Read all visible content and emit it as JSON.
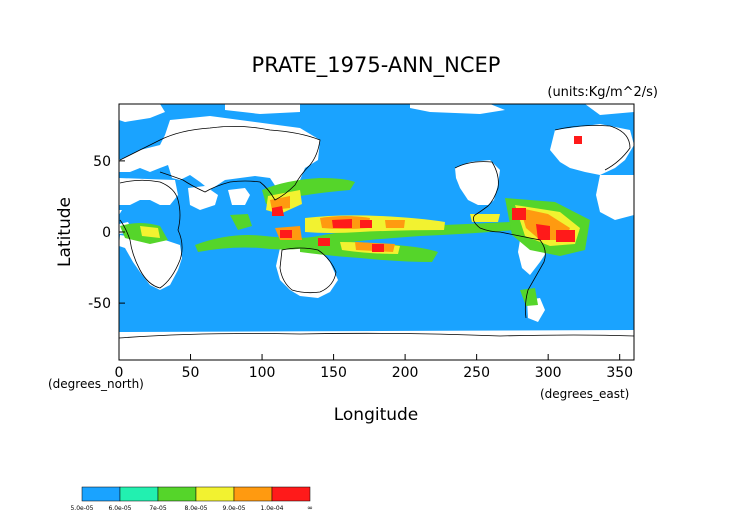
{
  "title": "PRATE_1975-ANN_NCEP",
  "units": "(units:Kg/m^2/s)",
  "x_axis": {
    "label": "Longitude",
    "unit_note": "(degrees_east)",
    "ticks": [
      {
        "value": 0,
        "label": "0"
      },
      {
        "value": 50,
        "label": "50"
      },
      {
        "value": 100,
        "label": "100"
      },
      {
        "value": 150,
        "label": "150"
      },
      {
        "value": 200,
        "label": "200"
      },
      {
        "value": 250,
        "label": "250"
      },
      {
        "value": 300,
        "label": "300"
      },
      {
        "value": 350,
        "label": "350"
      }
    ],
    "range": [
      0,
      360
    ]
  },
  "y_axis": {
    "label": "Latitude",
    "unit_note": "(degrees_north)",
    "ticks": [
      {
        "value": 50,
        "label": "50"
      },
      {
        "value": 0,
        "label": "0"
      },
      {
        "value": -50,
        "label": "-50"
      }
    ],
    "range": [
      -90,
      90
    ]
  },
  "colorbar": {
    "bins": [
      {
        "label": "5.0e-05",
        "color": "#1aa3ff"
      },
      {
        "label": "6.0e-05",
        "color": "#22f0b0"
      },
      {
        "label": "7e-05",
        "color": "#55d52a"
      },
      {
        "label": "8.0e-05",
        "color": "#f2f230"
      },
      {
        "label": "9.0e-05",
        "color": "#ff9a10"
      },
      {
        "label": "1.0e-04",
        "color": "#ff1a1a"
      }
    ],
    "end_label": "∞"
  },
  "colors": {
    "background_field": "#1aa3ff",
    "missing": "#ffffff",
    "coast": "#000000"
  }
}
